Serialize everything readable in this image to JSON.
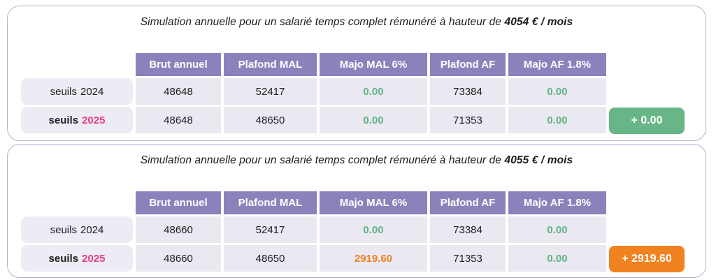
{
  "colors": {
    "header_purple": "#8d81bc",
    "panel_border": "#b6b1d1",
    "cell_background": "#eae8f1",
    "chip_background": "#edebf3",
    "green_value": "#63b384",
    "orange_value": "#f0801e",
    "pink_year": "#e83e7e",
    "badge_green": "#68b588",
    "badge_orange": "#f0821f"
  },
  "panels": [
    {
      "title_prefix": "Simulation annuelle pour un salarié temps complet rémunéré à hauteur de",
      "title_bold": "4054 € / mois",
      "columns": [
        "Brut annuel",
        "Plafond MAL",
        "Majo MAL 6%",
        "Plafond AF",
        "Majo AF 1.8%"
      ],
      "rows": [
        {
          "label_word": "seuils",
          "label_year": "2024",
          "values": [
            "48648",
            "52417",
            "0.00",
            "73384",
            "0.00"
          ]
        },
        {
          "label_word": "seuils",
          "label_year": "2025",
          "values": [
            "48648",
            "48650",
            "0.00",
            "71353",
            "0.00"
          ]
        }
      ],
      "badge": "+ 0.00"
    },
    {
      "title_prefix": "Simulation annuelle pour un salarié temps complet rémunéré à hauteur de",
      "title_bold": "4055 € / mois",
      "columns": [
        "Brut annuel",
        "Plafond MAL",
        "Majo MAL 6%",
        "Plafond AF",
        "Majo AF 1.8%"
      ],
      "rows": [
        {
          "label_word": "seuils",
          "label_year": "2024",
          "values": [
            "48660",
            "52417",
            "0.00",
            "73384",
            "0.00"
          ]
        },
        {
          "label_word": "seuils",
          "label_year": "2025",
          "values": [
            "48660",
            "48650",
            "2919.60",
            "71353",
            "0.00"
          ]
        }
      ],
      "badge": "+ 2919.60"
    }
  ]
}
